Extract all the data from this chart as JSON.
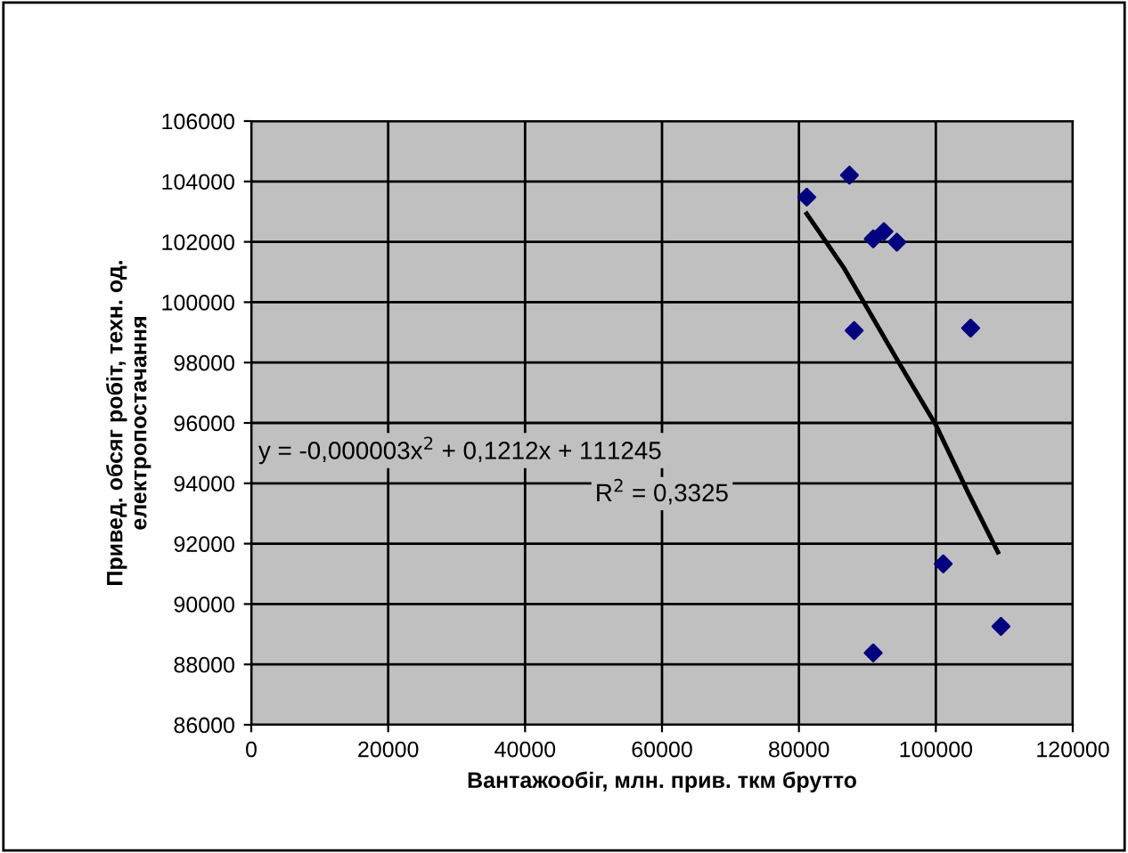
{
  "chart_data": {
    "type": "scatter",
    "xlabel": "Вантажообіг, млн. прив. ткм брутто",
    "ylabel": "Привед. обсяг робіт, техн. од.\nелектропостачання",
    "xlim": [
      0,
      120000
    ],
    "xticks": [
      0,
      20000,
      40000,
      60000,
      80000,
      100000,
      120000
    ],
    "ylim": [
      86000,
      106000
    ],
    "yticks": [
      86000,
      88000,
      90000,
      92000,
      94000,
      96000,
      98000,
      100000,
      102000,
      104000,
      106000
    ],
    "grid": true,
    "legend": false,
    "marker": "diamond",
    "series": [
      {
        "color": "#000080",
        "x": [
          81140,
          87380,
          90850,
          92410,
          94310,
          88070,
          105080,
          101080,
          109510,
          90850
        ],
        "values": [
          103480,
          104210,
          102100,
          102340,
          101990,
          99060,
          99140,
          91330,
          89260,
          88380
        ]
      },
      {
        "type": "line",
        "color": "#000000",
        "marker": "none",
        "x": [
          81140,
          86500,
          94310,
          99960,
          104720,
          109070
        ],
        "values": [
          102930,
          101160,
          98110,
          95950,
          93690,
          91720
        ]
      }
    ],
    "annotations": [
      "y = -0,000003x$^{2}$ + 0,1212x + 111245",
      "R$^{2}$ = 0,3325"
    ]
  }
}
